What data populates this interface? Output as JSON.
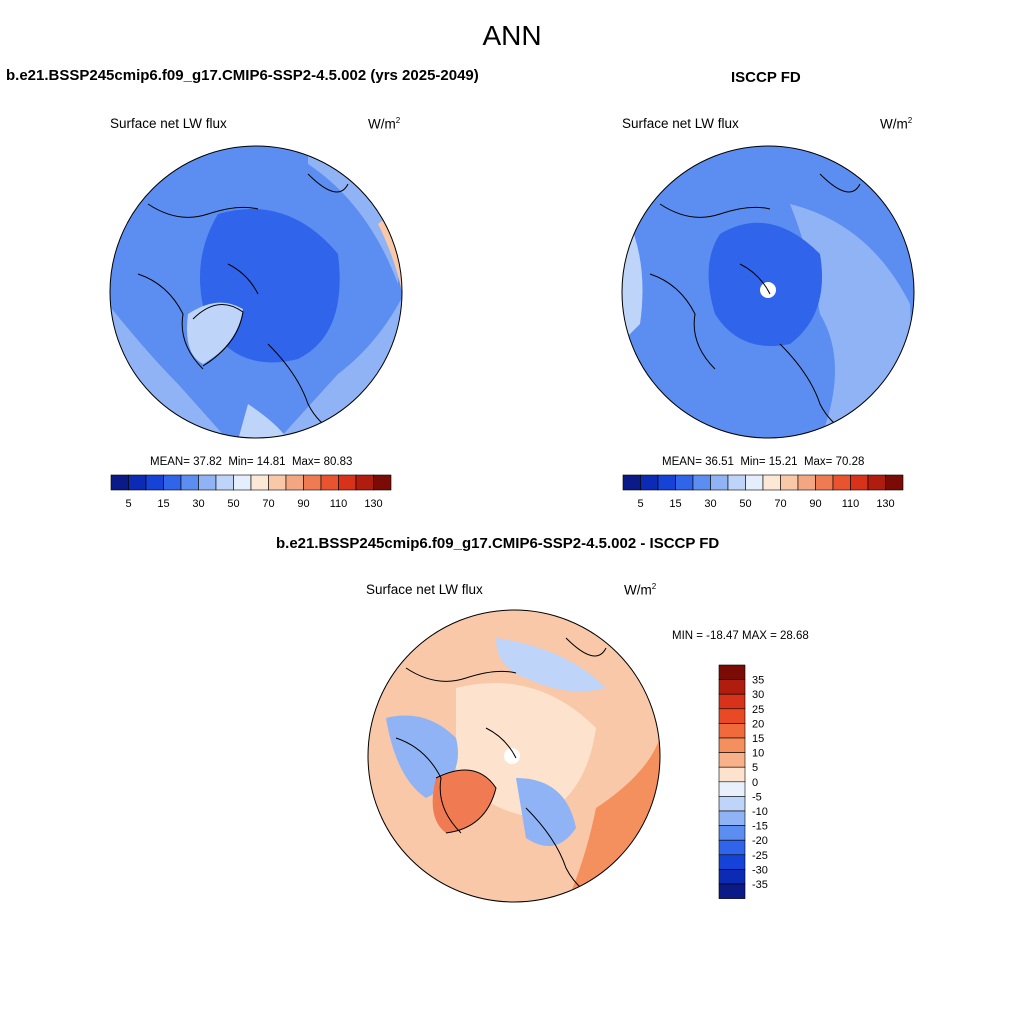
{
  "main_title": "ANN",
  "colors": {
    "coastline": "#000000",
    "cool_main": "#5b8ef0",
    "warm_main": "#f7c7a8"
  },
  "panels": [
    {
      "title": "b.e21.BSSP245cmip6.f09_g17.CMIP6-SSP2-4.5.002 (yrs 2025-2049)",
      "variable": "Surface net LW flux",
      "units": "W/m",
      "units_sup": "2",
      "stats": {
        "mean": "37.82",
        "min": "14.81",
        "max": "80.83"
      },
      "stats_labels": {
        "mean": "MEAN=",
        "min": "Min=",
        "max": "Max="
      }
    },
    {
      "title": "ISCCP FD",
      "variable": "Surface net LW flux",
      "units": "W/m",
      "units_sup": "2",
      "stats": {
        "mean": "36.51",
        "min": "15.21",
        "max": "70.28"
      },
      "stats_labels": {
        "mean": "MEAN=",
        "min": "Min=",
        "max": "Max="
      }
    },
    {
      "title": "b.e21.BSSP245cmip6.f09_g17.CMIP6-SSP2-4.5.002 - ISCCP FD",
      "variable": "Surface net LW flux",
      "units": "W/m",
      "units_sup": "2",
      "minmax_text": "MIN = -18.47 MAX =  28.68"
    }
  ],
  "colorbar_abs": {
    "colors": [
      "#0a1a87",
      "#0b2bb4",
      "#1543d8",
      "#2f64eb",
      "#5b8ef0",
      "#8fb3f5",
      "#bed4f8",
      "#e4eefc",
      "#fde8d6",
      "#f8c8a8",
      "#f4a582",
      "#f07a52",
      "#e8542e",
      "#d8321b",
      "#b01c0e",
      "#7a0c05"
    ],
    "labels": [
      "5",
      "15",
      "30",
      "50",
      "70",
      "90",
      "110",
      "130"
    ]
  },
  "colorbar_diff": {
    "colors": [
      "#7a0c05",
      "#b01c0e",
      "#d8321b",
      "#e84a25",
      "#f06a3c",
      "#f4905e",
      "#f8b189",
      "#fde3cd",
      "#e8f0fc",
      "#bed4f8",
      "#8fb3f5",
      "#5b8ef0",
      "#2f64eb",
      "#1543d8",
      "#0b2bb4",
      "#0a1a87"
    ],
    "labels": [
      "35",
      "30",
      "25",
      "20",
      "15",
      "10",
      "5",
      "0",
      "-5",
      "-10",
      "-15",
      "-20",
      "-25",
      "-30",
      "-35"
    ]
  }
}
